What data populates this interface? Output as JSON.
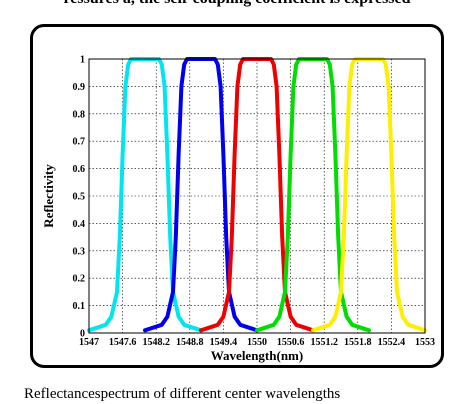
{
  "top_text": "ressures a, the self-coupling coefficient is expressed",
  "caption": "Reflectancespectrum of different center wavelengths",
  "chart_data": {
    "type": "line",
    "title": "",
    "xlabel": "Wavelength(nm)",
    "ylabel": "Reflectivity",
    "xlim": [
      1547,
      1553
    ],
    "ylim": [
      0,
      1
    ],
    "grid": true,
    "x_ticks": [
      1547,
      1547.6,
      1548.2,
      1548.8,
      1549.4,
      1550,
      1550.6,
      1551.2,
      1551.8,
      1552.4,
      1553
    ],
    "x_tick_labels": [
      "1547",
      "1547.6",
      "1548.2",
      "1548.8",
      "1549.4",
      "1550",
      "1550.6",
      "1551.2",
      "1551.8",
      "1552.4",
      "1553"
    ],
    "y_ticks": [
      0,
      0.1,
      0.2,
      0.3,
      0.4,
      0.5,
      0.6,
      0.7,
      0.8,
      0.9,
      1
    ],
    "y_tick_labels": [
      "0",
      "0.1",
      "0.2",
      "0.3",
      "0.4",
      "0.5",
      "0.6",
      "0.7",
      "0.8",
      "0.9",
      "1"
    ],
    "series": [
      {
        "color": "#00e5ee",
        "center": 1548.0,
        "x": [
          1547.0,
          1547.3,
          1547.4,
          1547.5,
          1547.55,
          1547.6,
          1547.65,
          1547.7,
          1547.75,
          1548.0,
          1548.25,
          1548.3,
          1548.35,
          1548.4,
          1548.45,
          1548.5,
          1548.6,
          1548.7,
          1549.0
        ],
        "y": [
          0.01,
          0.03,
          0.06,
          0.15,
          0.35,
          0.65,
          0.9,
          0.98,
          1.0,
          1.0,
          1.0,
          0.98,
          0.9,
          0.65,
          0.35,
          0.15,
          0.06,
          0.03,
          0.01
        ]
      },
      {
        "color": "#0000ee",
        "center": 1549.0,
        "x": [
          1548.0,
          1548.3,
          1548.4,
          1548.5,
          1548.55,
          1548.6,
          1548.65,
          1548.7,
          1548.75,
          1549.0,
          1549.25,
          1549.3,
          1549.35,
          1549.4,
          1549.45,
          1549.5,
          1549.6,
          1549.7,
          1550.0
        ],
        "y": [
          0.01,
          0.03,
          0.06,
          0.15,
          0.35,
          0.65,
          0.9,
          0.98,
          1.0,
          1.0,
          1.0,
          0.98,
          0.9,
          0.65,
          0.35,
          0.15,
          0.06,
          0.03,
          0.01
        ]
      },
      {
        "color": "#ee0000",
        "center": 1550.0,
        "x": [
          1549.0,
          1549.3,
          1549.4,
          1549.5,
          1549.55,
          1549.6,
          1549.65,
          1549.7,
          1549.75,
          1550.0,
          1550.25,
          1550.3,
          1550.35,
          1550.4,
          1550.45,
          1550.5,
          1550.6,
          1550.7,
          1551.0
        ],
        "y": [
          0.01,
          0.03,
          0.06,
          0.15,
          0.35,
          0.65,
          0.9,
          0.98,
          1.0,
          1.0,
          1.0,
          0.98,
          0.9,
          0.65,
          0.35,
          0.15,
          0.06,
          0.03,
          0.01
        ]
      },
      {
        "color": "#00dd00",
        "center": 1551.0,
        "x": [
          1550.0,
          1550.3,
          1550.4,
          1550.5,
          1550.55,
          1550.6,
          1550.65,
          1550.7,
          1550.75,
          1551.0,
          1551.25,
          1551.3,
          1551.35,
          1551.4,
          1551.45,
          1551.5,
          1551.6,
          1551.7,
          1552.0
        ],
        "y": [
          0.01,
          0.03,
          0.06,
          0.15,
          0.35,
          0.65,
          0.9,
          0.98,
          1.0,
          1.0,
          1.0,
          0.98,
          0.9,
          0.65,
          0.35,
          0.15,
          0.06,
          0.03,
          0.01
        ]
      },
      {
        "color": "#ffee00",
        "center": 1552.0,
        "x": [
          1551.0,
          1551.3,
          1551.4,
          1551.5,
          1551.55,
          1551.6,
          1551.65,
          1551.7,
          1551.75,
          1552.0,
          1552.25,
          1552.3,
          1552.35,
          1552.4,
          1552.45,
          1552.5,
          1552.6,
          1552.7,
          1553.0
        ],
        "y": [
          0.01,
          0.03,
          0.06,
          0.15,
          0.35,
          0.65,
          0.9,
          0.98,
          1.0,
          1.0,
          1.0,
          0.98,
          0.9,
          0.65,
          0.35,
          0.15,
          0.06,
          0.03,
          0.01
        ]
      }
    ]
  }
}
